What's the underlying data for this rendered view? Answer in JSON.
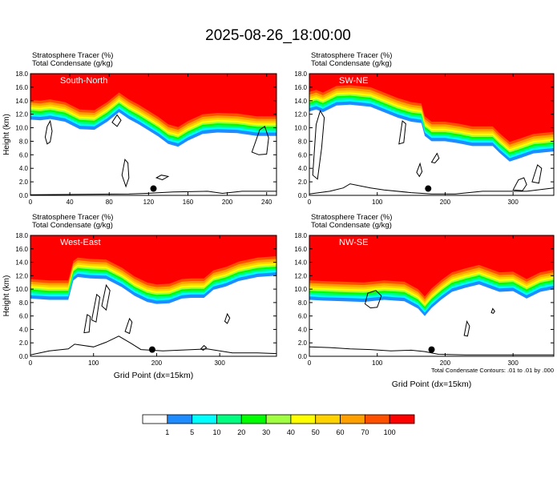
{
  "title": "2025-08-26_18:00:00",
  "colors": [
    "#ffffff",
    "#1e8cff",
    "#00ffff",
    "#00ff80",
    "#00ff00",
    "#a0ff40",
    "#ffff00",
    "#ffd200",
    "#ffa000",
    "#ff5000",
    "#ff0000"
  ],
  "colorbar": {
    "labels": [
      "1",
      "5",
      "10",
      "20",
      "30",
      "40",
      "50",
      "60",
      "70",
      "100"
    ]
  },
  "chart_data": [
    {
      "type": "heatmap",
      "subtitle1": "Stratosphere Tracer   (%)",
      "subtitle2": "Total Condensate   (g/kg)",
      "panel_label": "South-North",
      "ylabel": "Height (km)",
      "xlabel": "",
      "xlim": [
        0,
        250
      ],
      "ylim": [
        0,
        18
      ],
      "xticks": [
        0,
        40,
        80,
        120,
        160,
        200,
        240
      ],
      "yticks": [
        0.0,
        2.0,
        4.0,
        6.0,
        8.0,
        10.0,
        12.0,
        14.0,
        16.0,
        18.0
      ],
      "tracer_base_km": [
        [
          0,
          12.8
        ],
        [
          10,
          12.7
        ],
        [
          20,
          12.9
        ],
        [
          35,
          12.5
        ],
        [
          50,
          11.4
        ],
        [
          65,
          11.3
        ],
        [
          78,
          12.5
        ],
        [
          90,
          13.9
        ],
        [
          100,
          12.9
        ],
        [
          110,
          12.1
        ],
        [
          120,
          11.2
        ],
        [
          130,
          10.3
        ],
        [
          140,
          9.2
        ],
        [
          150,
          8.8
        ],
        [
          160,
          9.7
        ],
        [
          175,
          10.7
        ],
        [
          190,
          10.9
        ],
        [
          210,
          10.8
        ],
        [
          230,
          10.4
        ],
        [
          250,
          10.4
        ]
      ],
      "terrain_km": [
        [
          0,
          0.1
        ],
        [
          100,
          0.2
        ],
        [
          118,
          0.3
        ],
        [
          145,
          0.5
        ],
        [
          180,
          0.6
        ],
        [
          195,
          0.3
        ],
        [
          215,
          0.6
        ],
        [
          250,
          0.6
        ]
      ],
      "marker": {
        "x": 125,
        "y": 1.0
      },
      "contours": [
        [
          [
            15,
            8.6
          ],
          [
            17,
            10.2
          ],
          [
            20,
            11.0
          ],
          [
            22,
            9.5
          ],
          [
            20,
            7.9
          ],
          [
            17,
            7.6
          ]
        ],
        [
          [
            93,
            3.0
          ],
          [
            96,
            5.3
          ],
          [
            99,
            4.8
          ],
          [
            100,
            2.6
          ],
          [
            97,
            1.3
          ]
        ],
        [
          [
            128,
            2.6
          ],
          [
            133,
            3.0
          ],
          [
            140,
            2.8
          ],
          [
            134,
            2.3
          ]
        ],
        [
          [
            225,
            6.4
          ],
          [
            233,
            9.7
          ],
          [
            238,
            10.2
          ],
          [
            242,
            8.5
          ],
          [
            240,
            6.1
          ],
          [
            232,
            6.0
          ]
        ],
        [
          [
            83,
            10.8
          ],
          [
            88,
            11.9
          ],
          [
            92,
            11.1
          ],
          [
            88,
            10.2
          ]
        ]
      ]
    },
    {
      "type": "heatmap",
      "subtitle1": "Stratosphere Tracer   (%)",
      "subtitle2": "Total Condensate   (g/kg)",
      "panel_label": "SW-NE",
      "ylabel": "",
      "xlabel": "",
      "xlim": [
        0,
        360
      ],
      "ylim": [
        0,
        18
      ],
      "xticks": [
        0,
        100,
        200,
        300
      ],
      "yticks": [
        0.0,
        2.0,
        4.0,
        6.0,
        8.0,
        10.0,
        12.0,
        14.0,
        16.0,
        18.0
      ],
      "tracer_base_km": [
        [
          0,
          14.0
        ],
        [
          10,
          14.3
        ],
        [
          20,
          13.9
        ],
        [
          40,
          14.9
        ],
        [
          60,
          15.0
        ],
        [
          90,
          14.7
        ],
        [
          110,
          13.9
        ],
        [
          130,
          13.1
        ],
        [
          150,
          12.5
        ],
        [
          165,
          12.3
        ],
        [
          170,
          10.4
        ],
        [
          180,
          9.6
        ],
        [
          200,
          9.6
        ],
        [
          220,
          9.3
        ],
        [
          240,
          8.9
        ],
        [
          270,
          8.9
        ],
        [
          280,
          7.9
        ],
        [
          295,
          6.6
        ],
        [
          310,
          7.1
        ],
        [
          330,
          7.8
        ],
        [
          360,
          8.1
        ]
      ],
      "terrain_km": [
        [
          0,
          0.2
        ],
        [
          30,
          0.6
        ],
        [
          50,
          1.1
        ],
        [
          60,
          1.7
        ],
        [
          90,
          1.1
        ],
        [
          110,
          0.8
        ],
        [
          150,
          0.4
        ],
        [
          180,
          0.2
        ],
        [
          215,
          0.2
        ],
        [
          255,
          0.6
        ],
        [
          320,
          0.6
        ],
        [
          360,
          1.1
        ]
      ],
      "marker": {
        "x": 175,
        "y": 1.0
      },
      "contours": [
        [
          [
            5,
            3.0
          ],
          [
            10,
            10.5
          ],
          [
            16,
            12.5
          ],
          [
            22,
            11.5
          ],
          [
            18,
            7.0
          ],
          [
            12,
            2.4
          ]
        ],
        [
          [
            132,
            7.6
          ],
          [
            137,
            11.0
          ],
          [
            142,
            10.6
          ],
          [
            139,
            7.8
          ]
        ],
        [
          [
            158,
            3.4
          ],
          [
            163,
            4.7
          ],
          [
            166,
            3.5
          ],
          [
            162,
            2.8
          ]
        ],
        [
          [
            180,
            4.9
          ],
          [
            188,
            6.2
          ],
          [
            191,
            5.5
          ],
          [
            185,
            4.8
          ]
        ],
        [
          [
            300,
            0.8
          ],
          [
            308,
            2.3
          ],
          [
            316,
            2.6
          ],
          [
            320,
            1.6
          ],
          [
            314,
            0.7
          ]
        ],
        [
          [
            328,
            2.0
          ],
          [
            336,
            4.5
          ],
          [
            342,
            4.0
          ],
          [
            338,
            1.8
          ]
        ]
      ]
    },
    {
      "type": "heatmap",
      "subtitle1": "Stratosphere Tracer   (%)",
      "subtitle2": "Total Condensate   (g/kg)",
      "panel_label": "West-East",
      "ylabel": "Height (km)",
      "xlabel": "Grid Point (dx=15km)",
      "xlim": [
        0,
        390
      ],
      "ylim": [
        0,
        18
      ],
      "xticks": [
        0,
        100,
        200,
        300
      ],
      "yticks": [
        0.0,
        2.0,
        4.0,
        6.0,
        8.0,
        10.0,
        12.0,
        14.0,
        16.0,
        18.0
      ],
      "tracer_base_km": [
        [
          0,
          10.2
        ],
        [
          30,
          10.0
        ],
        [
          60,
          10.0
        ],
        [
          68,
          12.9
        ],
        [
          75,
          13.4
        ],
        [
          95,
          13.2
        ],
        [
          120,
          13.1
        ],
        [
          145,
          11.9
        ],
        [
          165,
          10.6
        ],
        [
          185,
          9.7
        ],
        [
          200,
          9.4
        ],
        [
          220,
          9.5
        ],
        [
          240,
          10.2
        ],
        [
          255,
          10.3
        ],
        [
          275,
          10.3
        ],
        [
          290,
          11.5
        ],
        [
          310,
          12.0
        ],
        [
          330,
          12.8
        ],
        [
          360,
          13.4
        ],
        [
          390,
          13.6
        ]
      ],
      "terrain_km": [
        [
          0,
          0.2
        ],
        [
          30,
          0.8
        ],
        [
          60,
          1.1
        ],
        [
          70,
          1.8
        ],
        [
          100,
          1.4
        ],
        [
          120,
          2.1
        ],
        [
          140,
          3.0
        ],
        [
          160,
          1.9
        ],
        [
          175,
          1.0
        ],
        [
          210,
          0.8
        ],
        [
          280,
          1.1
        ],
        [
          320,
          0.5
        ],
        [
          360,
          0.5
        ],
        [
          390,
          0.4
        ]
      ],
      "marker": {
        "x": 193,
        "y": 1.0
      },
      "contours": [
        [
          [
            85,
            3.5
          ],
          [
            90,
            6.2
          ],
          [
            95,
            5.9
          ],
          [
            93,
            3.6
          ]
        ],
        [
          [
            97,
            5.4
          ],
          [
            105,
            9.2
          ],
          [
            110,
            8.8
          ],
          [
            104,
            5.1
          ]
        ],
        [
          [
            113,
            7.5
          ],
          [
            120,
            10.6
          ],
          [
            126,
            9.8
          ],
          [
            120,
            6.9
          ]
        ],
        [
          [
            150,
            3.7
          ],
          [
            157,
            5.6
          ],
          [
            161,
            5.1
          ],
          [
            157,
            3.4
          ]
        ],
        [
          [
            270,
            1.1
          ],
          [
            275,
            1.6
          ],
          [
            279,
            1.3
          ],
          [
            274,
            0.9
          ]
        ],
        [
          [
            308,
            5.2
          ],
          [
            312,
            6.3
          ],
          [
            316,
            5.7
          ],
          [
            312,
            4.9
          ]
        ]
      ]
    },
    {
      "type": "heatmap",
      "subtitle1": "Stratosphere Tracer   (%)",
      "subtitle2": "Total Condensate   (g/kg)",
      "panel_label": "NW-SE",
      "ylabel": "",
      "xlabel": "Grid Point (dx=15km)",
      "xlim": [
        0,
        360
      ],
      "ylim": [
        0,
        18
      ],
      "xticks": [
        0,
        100,
        200,
        300
      ],
      "yticks": [
        0.0,
        2.0,
        4.0,
        6.0,
        8.0,
        10.0,
        12.0,
        14.0,
        16.0,
        18.0
      ],
      "tracer_base_km": [
        [
          0,
          10.0
        ],
        [
          20,
          9.9
        ],
        [
          50,
          9.8
        ],
        [
          80,
          9.7
        ],
        [
          110,
          10.0
        ],
        [
          140,
          9.8
        ],
        [
          160,
          8.7
        ],
        [
          170,
          7.6
        ],
        [
          180,
          8.8
        ],
        [
          195,
          10.1
        ],
        [
          210,
          11.2
        ],
        [
          230,
          11.8
        ],
        [
          250,
          12.3
        ],
        [
          280,
          11.2
        ],
        [
          300,
          11.3
        ],
        [
          320,
          10.2
        ],
        [
          340,
          11.2
        ],
        [
          360,
          11.6
        ]
      ],
      "terrain_km": [
        [
          0,
          1.4
        ],
        [
          30,
          1.3
        ],
        [
          60,
          1.1
        ],
        [
          90,
          1.0
        ],
        [
          120,
          0.8
        ],
        [
          150,
          0.9
        ],
        [
          170,
          0.7
        ],
        [
          190,
          0.3
        ],
        [
          230,
          0.2
        ],
        [
          280,
          0.2
        ],
        [
          330,
          0.2
        ],
        [
          360,
          0.2
        ]
      ],
      "marker": {
        "x": 180,
        "y": 1.0
      },
      "contours": [
        [
          [
            82,
            7.8
          ],
          [
            86,
            9.4
          ],
          [
            98,
            9.8
          ],
          [
            106,
            9.0
          ],
          [
            100,
            7.3
          ],
          [
            90,
            7.2
          ]
        ],
        [
          [
            228,
            3.1
          ],
          [
            232,
            5.2
          ],
          [
            236,
            4.5
          ],
          [
            233,
            3.0
          ]
        ],
        [
          [
            268,
            6.5
          ],
          [
            270,
            7.1
          ],
          [
            273,
            6.7
          ],
          [
            271,
            6.4
          ]
        ]
      ],
      "footnote": "Total Condensate Contours: .01 to .01 by .000"
    }
  ]
}
